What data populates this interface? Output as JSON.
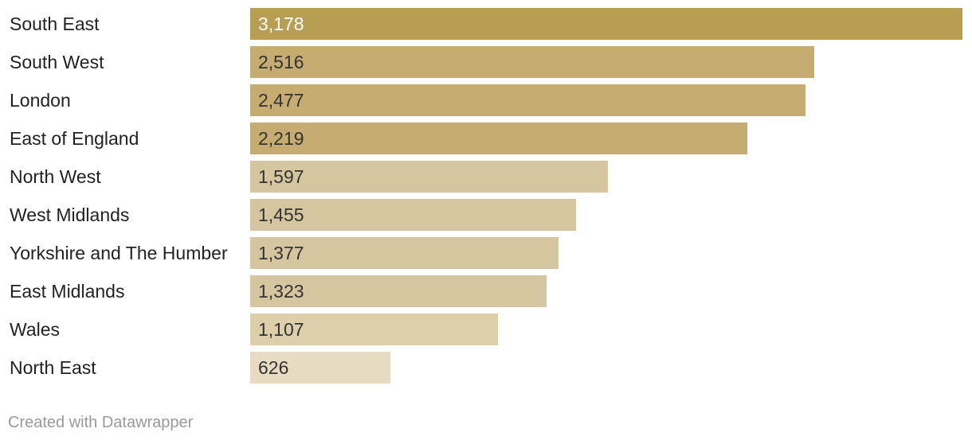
{
  "chart_data": {
    "type": "bar",
    "orientation": "horizontal",
    "categories": [
      "South East",
      "South West",
      "London",
      "East of England",
      "North West",
      "West Midlands",
      "Yorkshire and The Humber",
      "East Midlands",
      "Wales",
      "North East"
    ],
    "values": [
      3178,
      2516,
      2477,
      2219,
      1597,
      1455,
      1377,
      1323,
      1107,
      626
    ],
    "value_labels": [
      "3,178",
      "2,516",
      "2,477",
      "2,219",
      "1,597",
      "1,455",
      "1,377",
      "1,323",
      "1,107",
      "626"
    ],
    "colors": [
      "#b89e52",
      "#c5ad71",
      "#c5ad71",
      "#c5ad71",
      "#d6c69f",
      "#d6c69f",
      "#d6c69f",
      "#d6c69f",
      "#ddcfaa",
      "#e7dcc1"
    ],
    "xlim": [
      0,
      3178
    ],
    "grid": false,
    "legend": "none"
  },
  "footer": {
    "credit": "Created with Datawrapper"
  }
}
